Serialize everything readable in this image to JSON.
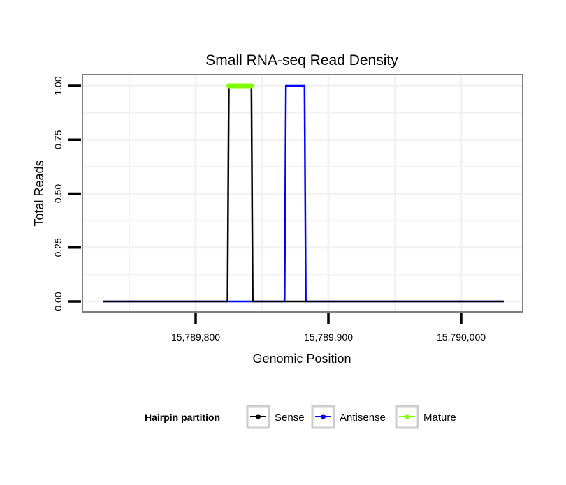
{
  "chart_data": {
    "type": "line",
    "title": "Small RNA-seq Read Density",
    "xlabel": "Genomic Position",
    "ylabel": "Total Reads",
    "xlim": [
      15789710,
      15790045
    ],
    "ylim": [
      -0.05,
      1.05
    ],
    "x_ticks": [
      15789800,
      15789900,
      15790000
    ],
    "x_tick_labels": [
      "15,789,800",
      "15,789,900",
      "15,790,000"
    ],
    "y_ticks": [
      0,
      0.25,
      0.5,
      0.75,
      1
    ],
    "y_tick_labels": [
      "0.00",
      "0.25",
      "0.50",
      "0.75",
      "1.00"
    ],
    "grid": true,
    "legend": {
      "title": "Hairpin partition",
      "placement": "bottom",
      "entries": [
        "Sense",
        "Antisense",
        "Mature"
      ]
    },
    "series": [
      {
        "name": "Antisense",
        "color": "#0000ff",
        "x": [
          15789730,
          15789867,
          15789868,
          15789882,
          15789883,
          15790032
        ],
        "y": [
          0,
          0,
          1,
          1,
          0,
          0
        ]
      },
      {
        "name": "Sense",
        "color": "#000000",
        "x": [
          15789730,
          15789824,
          15789825,
          15789842,
          15789843,
          15790032
        ],
        "y": [
          0,
          0,
          1,
          1,
          0,
          0
        ]
      },
      {
        "name": "Mature",
        "color": "#7fff00",
        "x": [
          15789825,
          15789842
        ],
        "y": [
          1,
          1
        ]
      }
    ]
  }
}
